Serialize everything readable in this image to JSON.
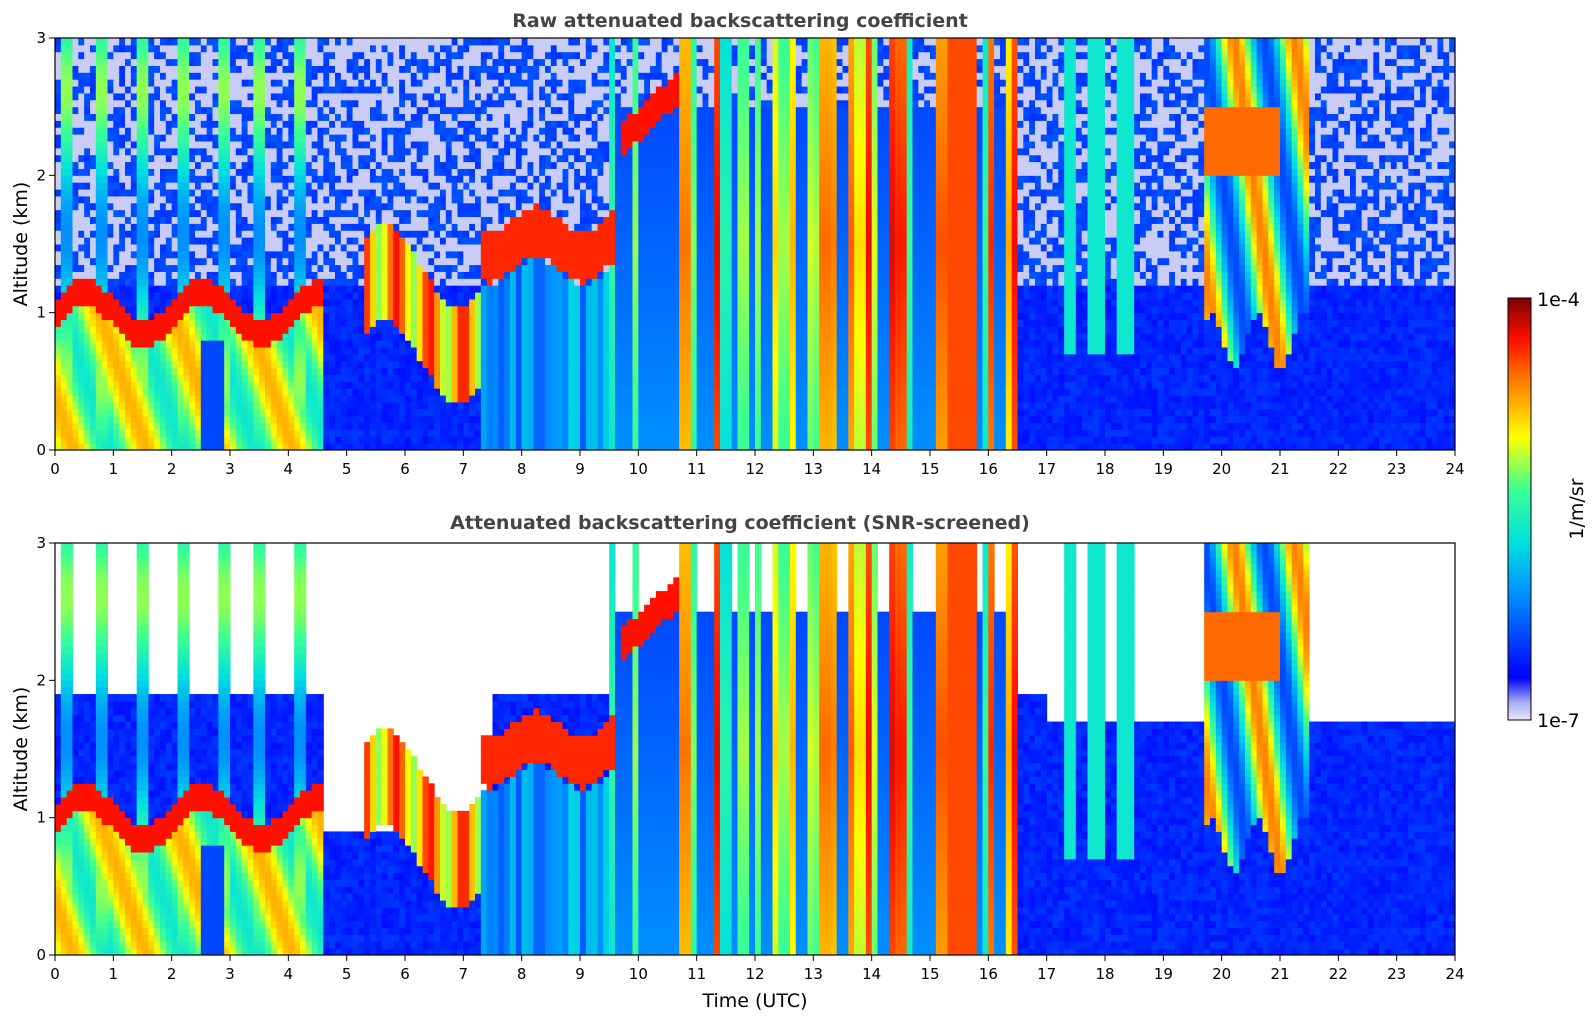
{
  "figure": {
    "colorbar": {
      "label": "1/m/sr",
      "max_label": "1e-4",
      "min_label": "1e-7",
      "colormap": "jet",
      "scale": "log",
      "range": [
        1e-07,
        0.0001
      ],
      "low_color": "#e8e8f8",
      "high_color": "#7f0000"
    },
    "shared_xlabel": "Time (UTC)"
  },
  "chart_data": [
    {
      "type": "heatmap",
      "title": "Raw attenuated backscattering coefficient",
      "ylabel": "Altitude (km)",
      "xlabel": "",
      "xlim": [
        0,
        24
      ],
      "ylim": [
        0,
        3
      ],
      "x_ticks": [
        "0",
        "1",
        "2",
        "3",
        "4",
        "5",
        "6",
        "7",
        "8",
        "9",
        "10",
        "11",
        "12",
        "13",
        "14",
        "15",
        "16",
        "17",
        "18",
        "19",
        "20",
        "21",
        "22",
        "23",
        "24"
      ],
      "y_ticks": [
        "0",
        "1",
        "2",
        "3"
      ],
      "screened": false,
      "features": [
        {
          "name": "boundary-layer aerosol",
          "t": [
            0,
            4.6
          ],
          "alt": [
            0,
            1.2
          ],
          "level": "high"
        },
        {
          "name": "cloud layer",
          "t": [
            5.3,
            7.3
          ],
          "alt": [
            0.5,
            1.5
          ],
          "level": "high"
        },
        {
          "name": "cloud layer",
          "t": [
            8,
            9.5
          ],
          "alt": [
            1.3,
            1.8
          ],
          "level": "high"
        },
        {
          "name": "rising cloud",
          "t": [
            9.7,
            10.7
          ],
          "alt": [
            2.2,
            2.7
          ],
          "level": "high"
        },
        {
          "name": "precipitation shafts",
          "t": [
            9.5,
            16.5
          ],
          "alt": [
            0,
            3
          ],
          "level": "high"
        },
        {
          "name": "cloud",
          "t": [
            19.7,
            21.5
          ],
          "alt": [
            0.8,
            2.9
          ],
          "level": "medium"
        }
      ]
    },
    {
      "type": "heatmap",
      "title": "Attenuated backscattering coefficient (SNR-screened)",
      "ylabel": "Altitude (km)",
      "xlabel": "Time (UTC)",
      "xlim": [
        0,
        24
      ],
      "ylim": [
        0,
        3
      ],
      "x_ticks": [
        "0",
        "1",
        "2",
        "3",
        "4",
        "5",
        "6",
        "7",
        "8",
        "9",
        "10",
        "11",
        "12",
        "13",
        "14",
        "15",
        "16",
        "17",
        "18",
        "19",
        "20",
        "21",
        "22",
        "23",
        "24"
      ],
      "y_ticks": [
        "0",
        "1",
        "2",
        "3"
      ],
      "screened": true,
      "features": [
        {
          "name": "boundary-layer aerosol",
          "t": [
            0,
            4.6
          ],
          "alt": [
            0,
            1.2
          ],
          "level": "high"
        },
        {
          "name": "cloud layer",
          "t": [
            5.3,
            7.3
          ],
          "alt": [
            0.5,
            1.5
          ],
          "level": "high"
        },
        {
          "name": "cloud layer",
          "t": [
            8,
            9.5
          ],
          "alt": [
            1.3,
            1.8
          ],
          "level": "high"
        },
        {
          "name": "rising cloud",
          "t": [
            9.7,
            10.7
          ],
          "alt": [
            2.2,
            2.7
          ],
          "level": "high"
        },
        {
          "name": "precipitation shafts",
          "t": [
            9.5,
            16.5
          ],
          "alt": [
            0,
            3
          ],
          "level": "high"
        },
        {
          "name": "cloud",
          "t": [
            19.7,
            21.5
          ],
          "alt": [
            0.8,
            2.9
          ],
          "level": "medium"
        }
      ]
    }
  ]
}
